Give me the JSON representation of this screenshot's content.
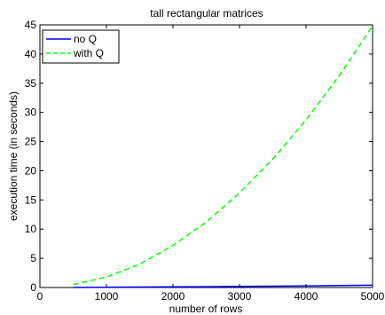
{
  "chart_data": {
    "type": "line",
    "title": "tall rectangular matrices",
    "xlabel": "number of rows",
    "ylabel": "execution time (in seconds)",
    "xlim": [
      0,
      5000
    ],
    "ylim": [
      0,
      45
    ],
    "xticks": [
      0,
      1000,
      2000,
      3000,
      4000,
      5000
    ],
    "yticks": [
      0,
      5,
      10,
      15,
      20,
      25,
      30,
      35,
      40,
      45
    ],
    "grid": false,
    "legend_position": "top-left",
    "series": [
      {
        "name": "no Q",
        "color": "#0000ff",
        "style": "solid",
        "x": [
          500,
          1000,
          1500,
          2000,
          2500,
          3000,
          3500,
          4000,
          4500,
          5000
        ],
        "values": [
          0.02,
          0.04,
          0.07,
          0.1,
          0.14,
          0.18,
          0.23,
          0.28,
          0.34,
          0.4
        ]
      },
      {
        "name": "with Q",
        "color": "#00ff00",
        "style": "dashed",
        "x": [
          500,
          1000,
          1500,
          2000,
          2500,
          3000,
          3500,
          4000,
          4500,
          5000
        ],
        "values": [
          0.5,
          1.8,
          4.0,
          7.2,
          11.2,
          16.2,
          22.0,
          28.7,
          36.3,
          44.8
        ]
      }
    ]
  }
}
